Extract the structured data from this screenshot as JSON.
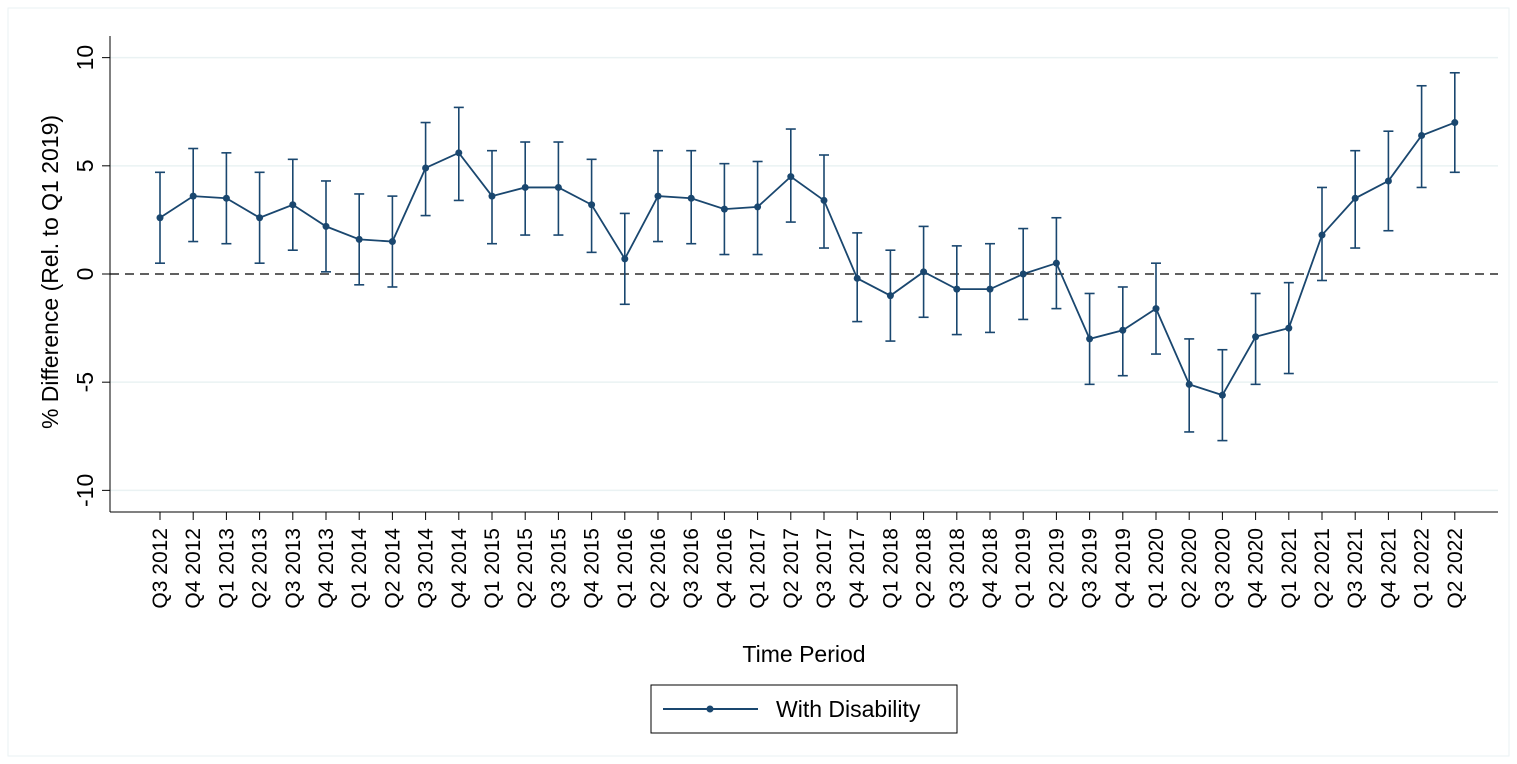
{
  "chart_data": {
    "type": "line",
    "xlabel": "Time Period",
    "ylabel": "% Difference (Rel. to Q1 2019)",
    "ylim": [
      -11,
      11
    ],
    "yticks": [
      -10,
      -5,
      0,
      5,
      10
    ],
    "ytick_labels": [
      "-10",
      "-5",
      "0",
      "5",
      "10"
    ],
    "grid": true,
    "reference_line": 0,
    "categories": [
      "Q3 2012",
      "Q4 2012",
      "Q1 2013",
      "Q2 2013",
      "Q3 2013",
      "Q4 2013",
      "Q1 2014",
      "Q2 2014",
      "Q3 2014",
      "Q4 2014",
      "Q1 2015",
      "Q2 2015",
      "Q3 2015",
      "Q4 2015",
      "Q1 2016",
      "Q2 2016",
      "Q3 2016",
      "Q4 2016",
      "Q1 2017",
      "Q2 2017",
      "Q3 2017",
      "Q4 2017",
      "Q1 2018",
      "Q2 2018",
      "Q3 2018",
      "Q4 2018",
      "Q1 2019",
      "Q2 2019",
      "Q3 2019",
      "Q4 2019",
      "Q1 2020",
      "Q2 2020",
      "Q3 2020",
      "Q4 2020",
      "Q1 2021",
      "Q2 2021",
      "Q3 2021",
      "Q4 2021",
      "Q1 2022",
      "Q2 2022"
    ],
    "series": [
      {
        "name": "With Disability",
        "color": "#1a476f",
        "values": [
          2.6,
          3.6,
          3.5,
          2.6,
          3.2,
          2.2,
          1.6,
          1.5,
          4.9,
          5.6,
          3.6,
          4.0,
          4.0,
          3.2,
          0.7,
          3.6,
          3.5,
          3.0,
          3.1,
          4.5,
          3.4,
          -0.2,
          -1.0,
          0.1,
          -0.7,
          -0.7,
          0.0,
          0.5,
          -3.0,
          -2.6,
          -1.6,
          -5.1,
          -5.6,
          -2.9,
          -2.5,
          1.8,
          3.5,
          4.3,
          6.4,
          7.0
        ],
        "ci_lower": [
          0.5,
          1.5,
          1.4,
          0.5,
          1.1,
          0.1,
          -0.5,
          -0.6,
          2.7,
          3.4,
          1.4,
          1.8,
          1.8,
          1.0,
          -1.4,
          1.5,
          1.4,
          0.9,
          0.9,
          2.4,
          1.2,
          -2.2,
          -3.1,
          -2.0,
          -2.8,
          -2.7,
          -2.1,
          -1.6,
          -5.1,
          -4.7,
          -3.7,
          -7.3,
          -7.7,
          -5.1,
          -4.6,
          -0.3,
          1.2,
          2.0,
          4.0,
          4.7
        ],
        "ci_upper": [
          4.7,
          5.8,
          5.6,
          4.7,
          5.3,
          4.3,
          3.7,
          3.6,
          7.0,
          7.7,
          5.7,
          6.1,
          6.1,
          5.3,
          2.8,
          5.7,
          5.7,
          5.1,
          5.2,
          6.7,
          5.5,
          1.9,
          1.1,
          2.2,
          1.3,
          1.4,
          2.1,
          2.6,
          -0.9,
          -0.6,
          0.5,
          -3.0,
          -3.5,
          -0.9,
          -0.4,
          4.0,
          5.7,
          6.6,
          8.7,
          9.3
        ]
      }
    ],
    "legend": {
      "placement": "bottom-center",
      "label": "With Disability"
    }
  }
}
